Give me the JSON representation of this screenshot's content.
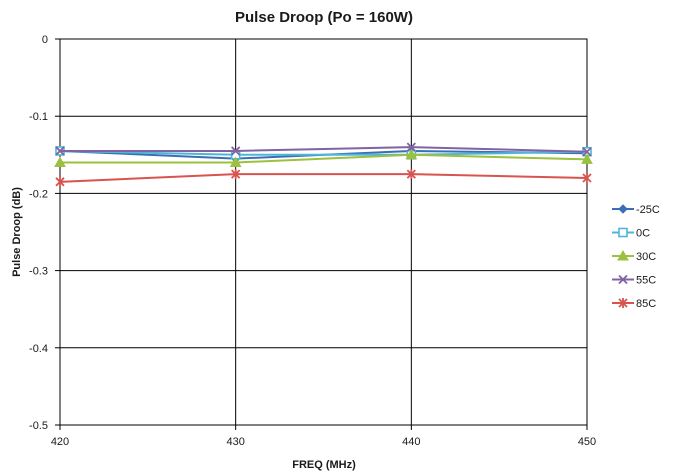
{
  "chart_data": {
    "type": "line",
    "title": "Pulse Droop (Po = 160W)",
    "xlabel": "FREQ (MHz)",
    "ylabel": "Pulse Droop  (dB)",
    "x": [
      420,
      430,
      440,
      450
    ],
    "xlim": [
      420,
      450
    ],
    "xticks": [
      "420",
      "430",
      "440",
      "450"
    ],
    "ylim": [
      -0.5,
      0
    ],
    "yticks": [
      "0",
      "-0.1",
      "-0.2",
      "-0.3",
      "-0.4",
      "-0.5"
    ],
    "grid": true,
    "legend_position": "right",
    "series": [
      {
        "name": "-25C",
        "color": "#3a6fb5",
        "marker": "diamond",
        "values": [
          -0.145,
          -0.155,
          -0.145,
          -0.148
        ]
      },
      {
        "name": "0C",
        "color": "#4fb6d9",
        "marker": "square-open",
        "values": [
          -0.145,
          -0.15,
          -0.15,
          -0.146
        ]
      },
      {
        "name": "30C",
        "color": "#9cc13e",
        "marker": "triangle",
        "values": [
          -0.16,
          -0.16,
          -0.15,
          -0.156
        ]
      },
      {
        "name": "55C",
        "color": "#8064a2",
        "marker": "x",
        "values": [
          -0.145,
          -0.145,
          -0.14,
          -0.146
        ]
      },
      {
        "name": "85C",
        "color": "#d9534f",
        "marker": "star",
        "values": [
          -0.185,
          -0.175,
          -0.175,
          -0.18
        ]
      }
    ]
  }
}
